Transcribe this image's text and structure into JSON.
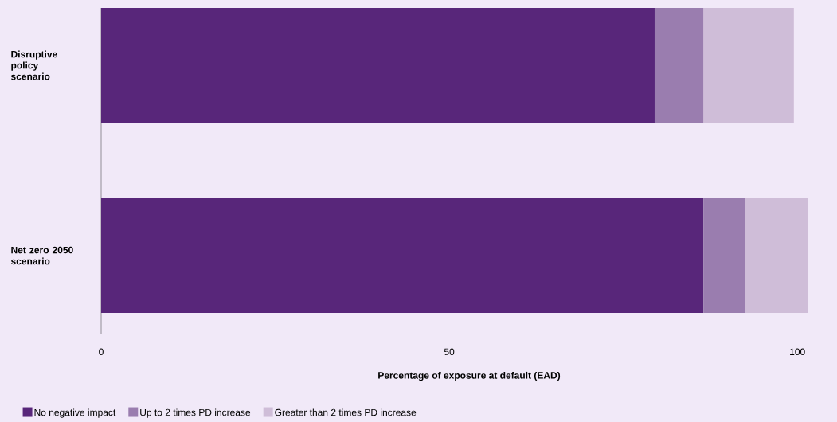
{
  "chart_data": {
    "type": "bar",
    "orientation": "horizontal",
    "stacked": true,
    "categories": [
      "Disruptive policy scenario",
      "Net zero 2050 scenario"
    ],
    "series": [
      {
        "name": "No negative impact",
        "color": "#58267a",
        "values": [
          79.5,
          86.5
        ]
      },
      {
        "name": "Up to 2 times PD increase",
        "color": "#9a7daf",
        "values": [
          7,
          6
        ]
      },
      {
        "name": "Greater than 2 times PD increase",
        "color": "#cfbdd8",
        "values": [
          13,
          9
        ]
      }
    ],
    "xlabel": "Percentage of exposure at default (EAD)",
    "xlim": [
      0,
      105.7
    ],
    "xticks": [
      0,
      50,
      100
    ],
    "legend": "bottom left"
  }
}
